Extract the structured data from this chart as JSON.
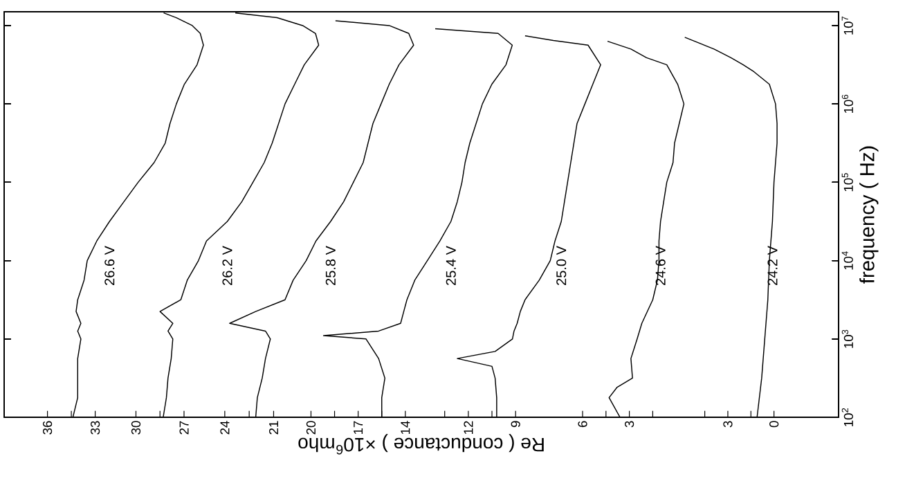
{
  "chart_data": [
    {
      "type": "line",
      "orientation": "horizontal",
      "log": "y",
      "xlim": [
        38.71,
        -13.71
      ],
      "xticks": [
        36,
        {
          "value": 34.5,
          "label": null
        },
        33
      ],
      "ylim": [
        100,
        15000000
      ],
      "yticks": [
        100,
        1000,
        10000,
        100000,
        1000000,
        10000000
      ],
      "tick_labels": "x",
      "series": [
        {
          "name": "26.6 V",
          "color": "#000000",
          "x": [
            100,
            178,
            316,
            562,
            1000,
            1260,
            1580,
            2240,
            3160,
            5620,
            10000,
            17800,
            31600,
            56200,
            100000,
            178000,
            316000,
            562000,
            1000000,
            1780000,
            3160000,
            5620000,
            7940000,
            10000000,
            12600000,
            14500000
          ],
          "values": [
            34.4,
            34.1,
            34.1,
            34.1,
            33.9,
            34.1,
            33.9,
            34.2,
            34.1,
            33.7,
            33.5,
            32.9,
            32.1,
            31.2,
            30.3,
            29.3,
            28.6,
            28.3,
            27.9,
            27.4,
            26.6,
            26.2,
            26.4,
            26.9,
            27.9,
            28.7
          ]
        }
      ]
    },
    {
      "type": "line",
      "orientation": "horizontal",
      "log": "y",
      "xlim": [
        38.21,
        -13.83
      ],
      "xticks": [
        30,
        {
          "value": 28.5,
          "label": null
        },
        27
      ],
      "ylim": [
        100,
        15000000
      ],
      "yticks": [
        100,
        1000,
        10000,
        100000,
        1000000,
        10000000
      ],
      "tick_labels": "x",
      "series": [
        {
          "name": "26.2 V",
          "color": "#000000",
          "x": [
            100,
            178,
            316,
            562,
            1000,
            1260,
            1580,
            2240,
            3160,
            5620,
            10000,
            17800,
            31600,
            56200,
            100000,
            178000,
            316000,
            562000,
            1000000,
            1780000,
            3160000,
            5620000,
            7940000,
            10000000,
            12600000,
            14500000
          ],
          "values": [
            28.3,
            28.1,
            28.0,
            27.8,
            27.7,
            28.0,
            27.7,
            28.5,
            27.2,
            26.8,
            26.1,
            25.6,
            24.3,
            23.4,
            22.7,
            22.0,
            21.5,
            21.1,
            20.7,
            20.1,
            19.5,
            18.6,
            18.8,
            19.6,
            21.2,
            23.8
          ]
        }
      ]
    },
    {
      "type": "line",
      "orientation": "horizontal",
      "log": "y",
      "xlim": [
        37.54,
        -13.7
      ],
      "xticks": [
        24,
        {
          "value": 22.5,
          "label": null
        },
        21
      ],
      "ylim": [
        100,
        15000000
      ],
      "yticks": [
        100,
        1000,
        10000,
        100000,
        1000000,
        10000000
      ],
      "tick_labels": "x",
      "series": [
        {
          "name": "25.8 V",
          "color": "#000000",
          "x": [
            100,
            178,
            316,
            562,
            1000,
            1260,
            1580,
            2240,
            3160,
            5620,
            10000,
            17800,
            31600,
            56200,
            100000,
            178000,
            316000,
            562000,
            1000000,
            1780000,
            3160000,
            5620000,
            7940000,
            10000000,
            11500000
          ],
          "values": [
            22.1,
            22.0,
            21.7,
            21.5,
            21.2,
            21.5,
            23.7,
            22.1,
            20.3,
            19.8,
            19.0,
            18.4,
            17.5,
            16.7,
            16.1,
            15.5,
            15.2,
            14.9,
            14.4,
            13.9,
            13.3,
            12.4,
            12.7,
            13.9,
            17.2
          ]
        }
      ]
    },
    {
      "type": "line",
      "orientation": "horizontal",
      "log": "y",
      "xlim": [
        39.5,
        -13.55
      ],
      "xticks": [
        20,
        {
          "value": 18.5,
          "label": null
        },
        17,
        {
          "value": 15.5,
          "label": null
        },
        14
      ],
      "ylim": [
        100,
        15000000
      ],
      "yticks": [
        100,
        1000,
        10000,
        100000,
        1000000,
        10000000
      ],
      "tick_labels": "x",
      "series": [
        {
          "name": "25.4 V",
          "color": "#000000",
          "x": [
            100,
            178,
            316,
            562,
            1000,
            1100,
            1260,
            1580,
            2240,
            3160,
            5620,
            10000,
            17800,
            31600,
            56200,
            100000,
            178000,
            316000,
            562000,
            1000000,
            1780000,
            3160000,
            5620000,
            7940000,
            9120000
          ],
          "values": [
            15.5,
            15.5,
            15.3,
            15.7,
            16.5,
            19.2,
            15.7,
            14.3,
            14.1,
            13.9,
            13.4,
            12.6,
            11.8,
            11.1,
            10.7,
            10.4,
            10.2,
            9.9,
            9.5,
            9.1,
            8.5,
            7.6,
            7.2,
            8.1,
            12.1
          ]
        }
      ]
    },
    {
      "type": "line",
      "orientation": "horizontal",
      "log": "y",
      "xlim": [
        41.45,
        -11.5
      ],
      "xticks": [
        {
          "value": 13.5,
          "label": null
        },
        12,
        {
          "value": 10.5,
          "label": null
        },
        9
      ],
      "ylim": [
        100,
        15000000
      ],
      "yticks": [
        100,
        1000,
        10000,
        100000,
        1000000,
        10000000
      ],
      "tick_labels": "x",
      "series": [
        {
          "name": "25.0 V",
          "color": "#000000",
          "x": [
            100,
            178,
            316,
            447,
            562,
            692,
            1000,
            1260,
            1580,
            2240,
            3160,
            5620,
            10000,
            17800,
            31600,
            56200,
            100000,
            178000,
            316000,
            562000,
            1000000,
            1780000,
            3160000,
            5620000,
            6460000,
            7410000
          ],
          "values": [
            10.2,
            10.2,
            10.3,
            10.5,
            12.7,
            10.3,
            9.2,
            9.1,
            8.9,
            8.7,
            8.4,
            7.5,
            6.8,
            6.5,
            6.1,
            5.9,
            5.7,
            5.5,
            5.3,
            5.1,
            4.6,
            4.1,
            3.6,
            4.4,
            6.6,
            8.4
          ]
        }
      ]
    },
    {
      "type": "line",
      "orientation": "horizontal",
      "log": "y",
      "xlim": [
        43.09,
        -10.42
      ],
      "xticks": [
        6,
        {
          "value": 4.5,
          "label": null
        },
        3,
        {
          "value": 1.5,
          "label": null
        }
      ],
      "ylim": [
        100,
        15000000
      ],
      "yticks": [
        100,
        1000,
        10000,
        100000,
        1000000,
        10000000
      ],
      "tick_labels": "x",
      "series": [
        {
          "name": "24.6 V",
          "color": "#000000",
          "x": [
            100,
            178,
            240,
            316,
            562,
            1000,
            1580,
            3160,
            5620,
            10000,
            17800,
            31600,
            56200,
            100000,
            178000,
            316000,
            562000,
            1000000,
            1780000,
            3160000,
            3890000,
            5010000,
            6310000
          ],
          "values": [
            3.6,
            4.3,
            3.8,
            2.8,
            2.9,
            2.5,
            2.2,
            1.5,
            1.2,
            1.1,
            1.1,
            1.0,
            0.8,
            0.6,
            0.2,
            0.1,
            -0.2,
            -0.5,
            -0.1,
            0.6,
            1.9,
            2.9,
            4.4
          ]
        }
      ]
    },
    {
      "type": "line",
      "orientation": "horizontal",
      "log": "y",
      "xlabel": "Re ( conductance )      ×10$^{6}$mho",
      "ylabel": "frequency ( Hz)",
      "xlim": [
        50.04,
        -4.2
      ],
      "xticks": [
        {
          "value": 4.5,
          "label": null
        },
        3,
        {
          "value": 1.5,
          "label": null
        },
        0
      ],
      "ylim": [
        100,
        15000000
      ],
      "yticks": [
        {
          "value": 100,
          "label": "10$^{2}$"
        },
        {
          "value": 1000,
          "label": "10$^{3}$"
        },
        {
          "value": 10000,
          "label": "10$^{4}$"
        },
        {
          "value": 100000,
          "label": "10$^{5}$"
        },
        {
          "value": 1000000,
          "label": "10$^{6}$"
        },
        {
          "value": 10000000,
          "label": "10$^{7}$"
        }
      ],
      "series": [
        {
          "name": "24.2 V",
          "color": "#000000",
          "x": [
            100,
            316,
            1000,
            3160,
            10000,
            31600,
            100000,
            316000,
            562000,
            1000000,
            1780000,
            2570000,
            3160000,
            3890000,
            5010000,
            7080000
          ],
          "values": [
            1.1,
            0.8,
            0.6,
            0.4,
            0.3,
            0.1,
            0.0,
            -0.2,
            -0.2,
            -0.1,
            0.3,
            1.3,
            2.0,
            2.8,
            3.9,
            5.8
          ]
        }
      ]
    }
  ]
}
